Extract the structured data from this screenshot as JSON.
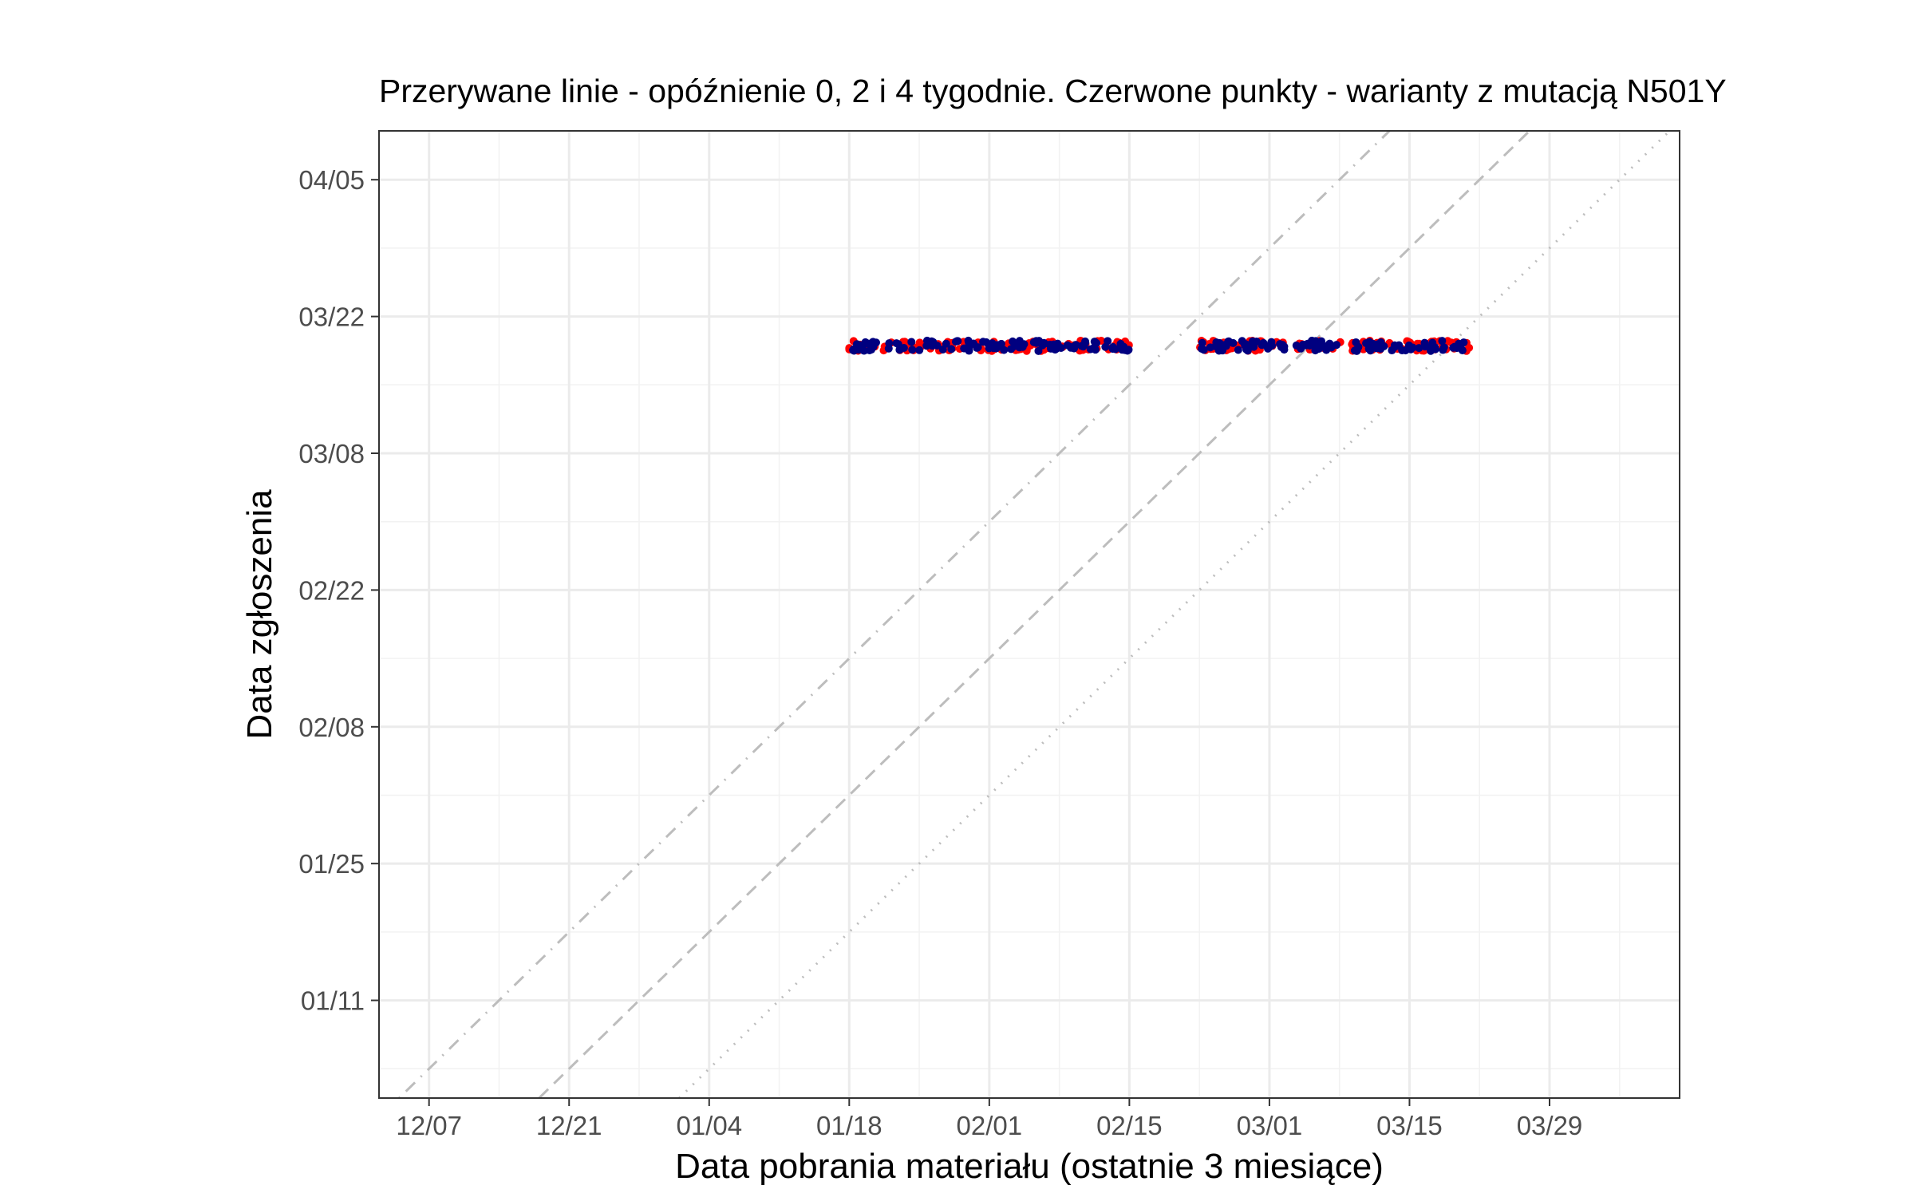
{
  "chart_data": {
    "type": "scatter",
    "title": "Przerywane linie - opóźnienie 0, 2 i 4 tygodnie. Czerwone punkty - warianty z mutacją N501Y",
    "xlabel": "Data pobrania materiału (ostatnie 3 miesiące)",
    "ylabel": "Data zgłoszenia",
    "x_axis": {
      "type": "date",
      "range": [
        "2020-12-02",
        "2021-04-11"
      ],
      "ticks": [
        {
          "date": "2020-12-07",
          "label": "12/07"
        },
        {
          "date": "2020-12-21",
          "label": "12/21"
        },
        {
          "date": "2021-01-04",
          "label": "01/04"
        },
        {
          "date": "2021-01-18",
          "label": "01/18"
        },
        {
          "date": "2021-02-01",
          "label": "02/01"
        },
        {
          "date": "2021-02-15",
          "label": "02/15"
        },
        {
          "date": "2021-03-01",
          "label": "03/01"
        },
        {
          "date": "2021-03-15",
          "label": "03/15"
        },
        {
          "date": "2021-03-29",
          "label": "03/29"
        }
      ]
    },
    "y_axis": {
      "type": "date",
      "range": [
        "2021-01-01",
        "2021-04-10"
      ],
      "ticks": [
        {
          "date": "2021-01-11",
          "label": "01/11"
        },
        {
          "date": "2021-01-25",
          "label": "01/25"
        },
        {
          "date": "2021-02-08",
          "label": "02/08"
        },
        {
          "date": "2021-02-22",
          "label": "02/22"
        },
        {
          "date": "2021-03-08",
          "label": "03/08"
        },
        {
          "date": "2021-03-22",
          "label": "03/22"
        },
        {
          "date": "2021-04-05",
          "label": "04/05"
        }
      ]
    },
    "grid": true,
    "reference_lines": [
      {
        "delay_weeks": 0,
        "style": "dotted",
        "color": "#bdbdbd"
      },
      {
        "delay_weeks": 2,
        "style": "dashed",
        "color": "#bdbdbd"
      },
      {
        "delay_weeks": 4,
        "style": "dotdash",
        "color": "#bdbdbd"
      }
    ],
    "series": [
      {
        "color": "#ff0000",
        "report_date": "2021-03-19",
        "sample_date_ranges": [
          [
            "2021-01-18",
            "2021-02-15"
          ],
          [
            "2021-02-22",
            "2021-03-21"
          ]
        ]
      },
      {
        "color": "#000080",
        "report_date": "2021-03-19",
        "sample_date_ranges": [
          [
            "2021-01-18",
            "2021-02-15"
          ],
          [
            "2021-02-22",
            "2021-03-21"
          ]
        ]
      }
    ]
  }
}
